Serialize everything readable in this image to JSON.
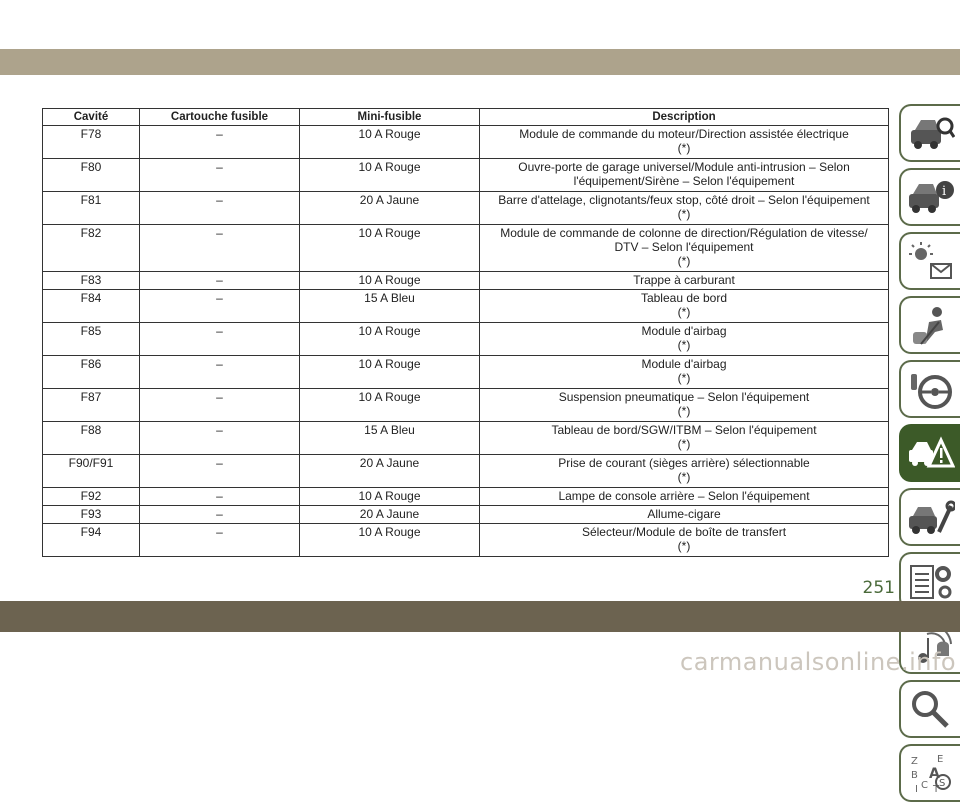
{
  "table": {
    "headers": [
      "Cavité",
      "Cartouche fusible",
      "Mini-fusible",
      "Description"
    ],
    "rows": [
      {
        "cavity": "F78",
        "cartridge": "–",
        "mini": "10 A Rouge",
        "desc1": "Module de commande du moteur/Direction assistée électrique",
        "desc2": "(*)",
        "desc3": ""
      },
      {
        "cavity": "F80",
        "cartridge": "–",
        "mini": "10 A Rouge",
        "desc1": "Ouvre-porte de garage universel/Module anti-intrusion – Selon",
        "desc2": "l'équipement/Sirène – Selon l'équipement",
        "desc3": ""
      },
      {
        "cavity": "F81",
        "cartridge": "–",
        "mini": "20 A Jaune",
        "desc1": "Barre d'attelage, clignotants/feux stop, côté droit – Selon l'équipement",
        "desc2": "(*)",
        "desc3": ""
      },
      {
        "cavity": "F82",
        "cartridge": "–",
        "mini": "10 A Rouge",
        "desc1": "Module de commande de colonne de direction/Régulation de vitesse/",
        "desc2": "DTV – Selon l'équipement",
        "desc3": "(*)"
      },
      {
        "cavity": "F83",
        "cartridge": "–",
        "mini": "10 A Rouge",
        "desc1": "Trappe à carburant",
        "desc2": "",
        "desc3": ""
      },
      {
        "cavity": "F84",
        "cartridge": "–",
        "mini": "15 A Bleu",
        "desc1": "Tableau de bord",
        "desc2": "(*)",
        "desc3": ""
      },
      {
        "cavity": "F85",
        "cartridge": "–",
        "mini": "10 A Rouge",
        "desc1": "Module d'airbag",
        "desc2": "(*)",
        "desc3": ""
      },
      {
        "cavity": "F86",
        "cartridge": "–",
        "mini": "10 A Rouge",
        "desc1": "Module d'airbag",
        "desc2": "(*)",
        "desc3": ""
      },
      {
        "cavity": "F87",
        "cartridge": "–",
        "mini": "10 A Rouge",
        "desc1": "Suspension pneumatique – Selon l'équipement",
        "desc2": "(*)",
        "desc3": ""
      },
      {
        "cavity": "F88",
        "cartridge": "–",
        "mini": "15 A Bleu",
        "desc1": "Tableau de bord/SGW/ITBM – Selon l'équipement",
        "desc2": "(*)",
        "desc3": ""
      },
      {
        "cavity": "F90/F91",
        "cartridge": "–",
        "mini": "20 A Jaune",
        "desc1": "Prise de courant (sièges arrière) sélectionnable",
        "desc2": "(*)",
        "desc3": ""
      },
      {
        "cavity": "F92",
        "cartridge": "–",
        "mini": "10 A Rouge",
        "desc1": "Lampe de console arrière – Selon l'équipement",
        "desc2": "",
        "desc3": ""
      },
      {
        "cavity": "F93",
        "cartridge": "–",
        "mini": "20 A Jaune",
        "desc1": "Allume-cigare",
        "desc2": "",
        "desc3": ""
      },
      {
        "cavity": "F94",
        "cartridge": "–",
        "mini": "10 A Rouge",
        "desc1": "Sélecteur/Module de boîte de transfert",
        "desc2": "(*)",
        "desc3": ""
      }
    ]
  },
  "page_number": "251",
  "watermark": "carmanualsonline.info",
  "sidebar": {
    "tabs": [
      {
        "icon": "car-search-icon",
        "active": false
      },
      {
        "icon": "car-info-icon",
        "active": false
      },
      {
        "icon": "warning-lights-message-icon",
        "active": false
      },
      {
        "icon": "seat-airbag-icon",
        "active": false
      },
      {
        "icon": "steering-wheel-icon",
        "active": false
      },
      {
        "icon": "roadside-emergency-icon",
        "active": true
      },
      {
        "icon": "car-service-wrench-icon",
        "active": false
      },
      {
        "icon": "specs-gears-icon",
        "active": false
      },
      {
        "icon": "multimedia-icon",
        "active": false
      },
      {
        "icon": "search-index-icon",
        "active": false
      },
      {
        "icon": "alphabetical-index-icon",
        "active": false
      }
    ]
  },
  "colors": {
    "top_band": "#ada38c",
    "bottom_band": "#6c6350",
    "tab_active": "#3c5a28",
    "tab_border": "#5c6b4a"
  }
}
